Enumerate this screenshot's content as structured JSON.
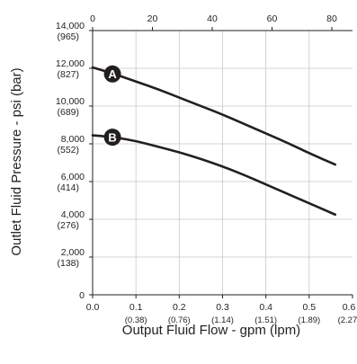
{
  "chart_data": {
    "type": "line",
    "title": "",
    "xlabel": "Output Fluid Flow - gpm (lpm)",
    "ylabel": "Outlet Fluid Pressure - psi (bar)",
    "xlim": [
      0,
      0.6
    ],
    "ylim": [
      0,
      14000
    ],
    "x2lim": [
      0,
      85
    ],
    "x_ticks": [
      {
        "value": 0,
        "label": "0.0",
        "sub": ""
      },
      {
        "value": 0.1,
        "label": "0.1",
        "sub": "(0.38)"
      },
      {
        "value": 0.2,
        "label": "0.2",
        "sub": "(0.76)"
      },
      {
        "value": 0.3,
        "label": "0.3",
        "sub": "(1.14)"
      },
      {
        "value": 0.4,
        "label": "0.4",
        "sub": "(1.51)"
      },
      {
        "value": 0.5,
        "label": "0.5",
        "sub": "(1.89)"
      },
      {
        "value": 0.6,
        "label": "0.6",
        "sub": "(2.27)"
      }
    ],
    "y_ticks": [
      {
        "value": 0,
        "label": "0",
        "sub": ""
      },
      {
        "value": 2000,
        "label": "2,000",
        "sub": "(138)"
      },
      {
        "value": 4000,
        "label": "4,000",
        "sub": "(276)"
      },
      {
        "value": 6000,
        "label": "6,000",
        "sub": "(414)"
      },
      {
        "value": 8000,
        "label": "8,000",
        "sub": "(552)"
      },
      {
        "value": 10000,
        "label": "10,000",
        "sub": "(689)"
      },
      {
        "value": 12000,
        "label": "12,000",
        "sub": "(827)"
      },
      {
        "value": 14000,
        "label": "14,000",
        "sub": "(965)"
      }
    ],
    "x2_ticks": [
      {
        "value": 0,
        "label": "0"
      },
      {
        "value": 20,
        "label": "20"
      },
      {
        "value": 40,
        "label": "40"
      },
      {
        "value": 60,
        "label": "60"
      },
      {
        "value": 80,
        "label": "80"
      }
    ],
    "grid": true,
    "series": [
      {
        "name": "A",
        "marker_at": 0.05,
        "x": [
          0.0,
          0.05,
          0.1,
          0.15,
          0.2,
          0.25,
          0.3,
          0.35,
          0.4,
          0.45,
          0.5,
          0.56
        ],
        "y": [
          12050,
          11700,
          11300,
          10900,
          10450,
          10000,
          9550,
          9050,
          8550,
          8050,
          7500,
          6900
        ]
      },
      {
        "name": "B",
        "marker_at": 0.05,
        "x": [
          0.0,
          0.05,
          0.1,
          0.15,
          0.2,
          0.25,
          0.3,
          0.35,
          0.4,
          0.45,
          0.5,
          0.56
        ],
        "y": [
          8450,
          8350,
          8150,
          7850,
          7550,
          7200,
          6800,
          6350,
          5850,
          5350,
          4850,
          4250
        ]
      }
    ]
  }
}
